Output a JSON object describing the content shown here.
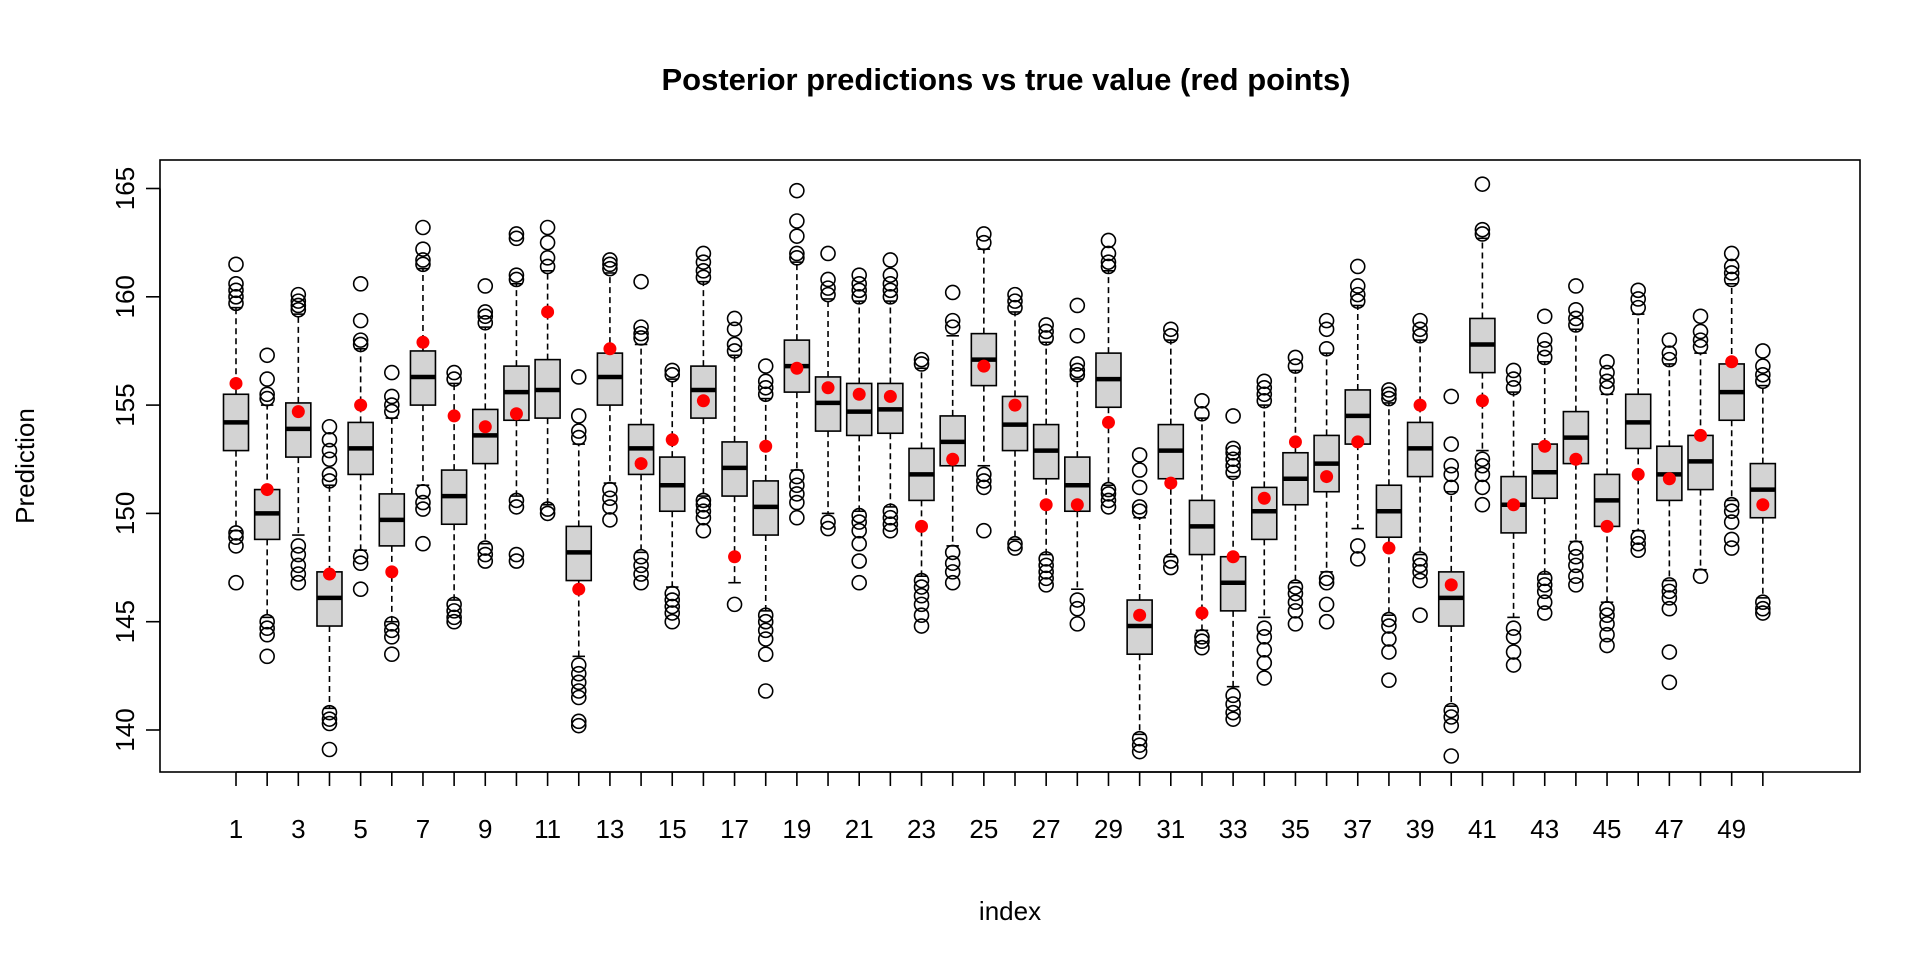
{
  "chart_data": {
    "type": "boxplot",
    "title": "Posterior predictions vs true value (red points)",
    "xlabel": "index",
    "ylabel": "Prediction",
    "ylim": [
      138,
      166
    ],
    "y_ticks": [
      140,
      145,
      150,
      155,
      160,
      165
    ],
    "x_tick_labels": [
      "1",
      "3",
      "5",
      "7",
      "9",
      "11",
      "13",
      "15",
      "17",
      "19",
      "21",
      "23",
      "25",
      "27",
      "29",
      "31",
      "33",
      "35",
      "37",
      "39",
      "41",
      "43",
      "45",
      "47",
      "49"
    ],
    "colors": {
      "box_fill": "#d3d3d3",
      "truth_point": "#ff0000",
      "frame": "#000000"
    },
    "grid": false,
    "categories": [
      1,
      2,
      3,
      4,
      5,
      6,
      7,
      8,
      9,
      10,
      11,
      12,
      13,
      14,
      15,
      16,
      17,
      18,
      19,
      20,
      21,
      22,
      23,
      24,
      25,
      26,
      27,
      28,
      29,
      30,
      31,
      32,
      33,
      34,
      35,
      36,
      37,
      38,
      39,
      40,
      41,
      42,
      43,
      44,
      45,
      46,
      47,
      48,
      49,
      50
    ],
    "boxes": [
      {
        "q1": 152.9,
        "median": 154.2,
        "q3": 155.5,
        "whisker_low": 149.2,
        "whisker_high": 159.5,
        "outliers": [
          146.8,
          148.5,
          148.9,
          149.1,
          159.7,
          160.0,
          160.3,
          160.6,
          161.5
        ]
      },
      {
        "q1": 148.8,
        "median": 150.0,
        "q3": 151.1,
        "whisker_low": 145.2,
        "whisker_high": 155.0,
        "outliers": [
          143.4,
          144.4,
          144.7,
          145.0,
          155.3,
          155.5,
          156.2,
          157.3
        ]
      },
      {
        "q1": 152.6,
        "median": 153.9,
        "q3": 155.1,
        "whisker_low": 149.0,
        "whisker_high": 159.2,
        "outliers": [
          146.8,
          147.2,
          147.6,
          148.1,
          148.5,
          159.4,
          159.6,
          159.8,
          160.1
        ]
      },
      {
        "q1": 144.8,
        "median": 146.1,
        "q3": 147.3,
        "whisker_low": 141.0,
        "whisker_high": 151.3,
        "outliers": [
          139.1,
          140.3,
          140.5,
          140.8,
          151.5,
          151.8,
          152.5,
          152.9,
          153.4,
          154.0
        ]
      },
      {
        "q1": 151.8,
        "median": 153.0,
        "q3": 154.2,
        "whisker_low": 148.3,
        "whisker_high": 157.6,
        "outliers": [
          146.5,
          147.7,
          148.0,
          157.8,
          158.0,
          158.9,
          160.6
        ]
      },
      {
        "q1": 148.5,
        "median": 149.7,
        "q3": 150.9,
        "whisker_low": 145.0,
        "whisker_high": 154.4,
        "outliers": [
          143.5,
          144.3,
          144.6,
          144.9,
          154.7,
          155.0,
          155.4,
          156.5
        ]
      },
      {
        "q1": 155.0,
        "median": 156.3,
        "q3": 157.5,
        "whisker_low": 151.3,
        "whisker_high": 161.3,
        "outliers": [
          148.6,
          150.2,
          150.5,
          151.0,
          161.5,
          161.7,
          162.2,
          163.2
        ]
      },
      {
        "q1": 149.5,
        "median": 150.8,
        "q3": 152.0,
        "whisker_low": 146.0,
        "whisker_high": 156.0,
        "outliers": [
          145.0,
          145.2,
          145.5,
          145.8,
          156.2,
          156.5
        ]
      },
      {
        "q1": 152.3,
        "median": 153.6,
        "q3": 154.8,
        "whisker_low": 148.6,
        "whisker_high": 158.6,
        "outliers": [
          147.8,
          148.1,
          148.4,
          158.8,
          159.1,
          159.3,
          160.5
        ]
      },
      {
        "q1": 154.3,
        "median": 155.6,
        "q3": 156.8,
        "whisker_low": 150.8,
        "whisker_high": 160.6,
        "outliers": [
          147.8,
          148.1,
          150.3,
          150.6,
          160.8,
          161.0,
          162.7,
          162.9
        ]
      },
      {
        "q1": 154.4,
        "median": 155.7,
        "q3": 157.1,
        "whisker_low": 150.4,
        "whisker_high": 161.2,
        "outliers": [
          150.0,
          150.2,
          161.4,
          161.8,
          162.5,
          163.2
        ]
      },
      {
        "q1": 146.9,
        "median": 148.2,
        "q3": 149.4,
        "whisker_low": 143.4,
        "whisker_high": 153.2,
        "outliers": [
          140.2,
          140.4,
          141.5,
          141.8,
          142.2,
          142.6,
          143.0,
          153.5,
          153.8,
          154.5,
          156.3
        ]
      },
      {
        "q1": 155.0,
        "median": 156.3,
        "q3": 157.4,
        "whisker_low": 151.4,
        "whisker_high": 161.1,
        "outliers": [
          149.7,
          150.3,
          150.7,
          151.1,
          161.3,
          161.5,
          161.7
        ]
      },
      {
        "q1": 151.8,
        "median": 153.0,
        "q3": 154.1,
        "whisker_low": 148.2,
        "whisker_high": 157.8,
        "outliers": [
          146.8,
          147.2,
          147.6,
          148.0,
          158.1,
          158.3,
          158.6,
          160.7
        ]
      },
      {
        "q1": 150.1,
        "median": 151.3,
        "q3": 152.6,
        "whisker_low": 146.6,
        "whisker_high": 156.2,
        "outliers": [
          145.0,
          145.4,
          145.7,
          146.0,
          146.3,
          156.4,
          156.6
        ]
      },
      {
        "q1": 154.4,
        "median": 155.7,
        "q3": 156.8,
        "whisker_low": 150.8,
        "whisker_high": 160.7,
        "outliers": [
          149.2,
          149.8,
          150.1,
          150.4,
          150.6,
          160.9,
          161.2,
          161.6,
          162.0
        ]
      },
      {
        "q1": 150.8,
        "median": 152.1,
        "q3": 153.3,
        "whisker_low": 146.8,
        "whisker_high": 157.3,
        "outliers": [
          145.8,
          157.5,
          157.8,
          158.5,
          159.0
        ]
      },
      {
        "q1": 149.0,
        "median": 150.3,
        "q3": 151.5,
        "whisker_low": 145.5,
        "whisker_high": 155.3,
        "outliers": [
          141.8,
          143.5,
          144.2,
          144.6,
          145.0,
          145.3,
          155.5,
          155.8,
          156.1,
          156.8
        ]
      },
      {
        "q1": 155.6,
        "median": 156.8,
        "q3": 158.0,
        "whisker_low": 152.0,
        "whisker_high": 161.6,
        "outliers": [
          149.8,
          150.5,
          150.9,
          151.3,
          151.7,
          161.8,
          162.0,
          162.8,
          163.5,
          164.9
        ]
      },
      {
        "q1": 153.8,
        "median": 155.1,
        "q3": 156.3,
        "whisker_low": 150.0,
        "whisker_high": 159.9,
        "outliers": [
          149.3,
          149.6,
          160.1,
          160.4,
          160.8,
          162.0
        ]
      },
      {
        "q1": 153.6,
        "median": 154.7,
        "q3": 156.0,
        "whisker_low": 150.1,
        "whisker_high": 159.8,
        "outliers": [
          146.8,
          147.8,
          148.6,
          149.2,
          149.6,
          149.9,
          160.0,
          160.3,
          160.6,
          161.0
        ]
      },
      {
        "q1": 153.7,
        "median": 154.8,
        "q3": 156.0,
        "whisker_low": 150.3,
        "whisker_high": 159.8,
        "outliers": [
          149.2,
          149.5,
          149.8,
          150.1,
          160.0,
          160.3,
          160.6,
          161.0,
          161.7
        ]
      },
      {
        "q1": 150.6,
        "median": 151.8,
        "q3": 153.0,
        "whisker_low": 147.1,
        "whisker_high": 156.7,
        "outliers": [
          144.8,
          145.3,
          145.8,
          146.2,
          146.6,
          146.9,
          156.9,
          157.1
        ]
      },
      {
        "q1": 152.2,
        "median": 153.3,
        "q3": 154.5,
        "whisker_low": 148.5,
        "whisker_high": 158.2,
        "outliers": [
          146.8,
          147.3,
          147.7,
          148.2,
          158.6,
          158.9,
          160.2
        ]
      },
      {
        "q1": 155.9,
        "median": 157.1,
        "q3": 158.3,
        "whisker_low": 152.2,
        "whisker_high": 162.2,
        "outliers": [
          149.2,
          151.2,
          151.5,
          151.8,
          162.5,
          162.9
        ]
      },
      {
        "q1": 152.9,
        "median": 154.1,
        "q3": 155.4,
        "whisker_low": 148.8,
        "whisker_high": 159.3,
        "outliers": [
          148.4,
          148.6,
          159.5,
          159.8,
          160.1
        ]
      },
      {
        "q1": 151.6,
        "median": 152.9,
        "q3": 154.1,
        "whisker_low": 148.1,
        "whisker_high": 157.9,
        "outliers": [
          146.7,
          147.0,
          147.3,
          147.6,
          147.9,
          158.1,
          158.4,
          158.7
        ]
      },
      {
        "q1": 150.1,
        "median": 151.3,
        "q3": 152.6,
        "whisker_low": 146.5,
        "whisker_high": 156.2,
        "outliers": [
          144.9,
          145.6,
          146.0,
          156.4,
          156.6,
          156.9,
          158.2,
          159.6
        ]
      },
      {
        "q1": 154.9,
        "median": 156.2,
        "q3": 157.4,
        "whisker_low": 151.3,
        "whisker_high": 161.2,
        "outliers": [
          150.3,
          150.6,
          150.9,
          151.1,
          161.4,
          161.6,
          162.0,
          162.6
        ]
      },
      {
        "q1": 143.5,
        "median": 144.8,
        "q3": 146.0,
        "whisker_low": 139.8,
        "whisker_high": 149.8,
        "outliers": [
          139.0,
          139.3,
          139.6,
          150.1,
          150.3,
          151.2,
          152.0,
          152.7
        ]
      },
      {
        "q1": 151.6,
        "median": 152.9,
        "q3": 154.1,
        "whisker_low": 148.0,
        "whisker_high": 158.0,
        "outliers": [
          147.5,
          147.8,
          158.2,
          158.5
        ]
      },
      {
        "q1": 148.1,
        "median": 149.4,
        "q3": 150.6,
        "whisker_low": 144.6,
        "whisker_high": 154.4,
        "outliers": [
          143.8,
          144.1,
          144.3,
          154.6,
          155.2
        ]
      },
      {
        "q1": 145.5,
        "median": 146.8,
        "q3": 148.0,
        "whisker_low": 142.0,
        "whisker_high": 151.7,
        "outliers": [
          140.5,
          140.8,
          141.2,
          141.6,
          151.9,
          152.2,
          152.5,
          152.8,
          153.0,
          154.5
        ]
      },
      {
        "q1": 148.8,
        "median": 150.1,
        "q3": 151.2,
        "whisker_low": 145.2,
        "whisker_high": 155.0,
        "outliers": [
          142.4,
          143.1,
          143.7,
          144.3,
          144.7,
          155.2,
          155.5,
          155.8,
          156.1
        ]
      },
      {
        "q1": 150.4,
        "median": 151.6,
        "q3": 152.8,
        "whisker_low": 146.8,
        "whisker_high": 156.6,
        "outliers": [
          144.9,
          145.5,
          145.9,
          146.3,
          146.6,
          156.8,
          157.2
        ]
      },
      {
        "q1": 151.0,
        "median": 152.3,
        "q3": 153.6,
        "whisker_low": 147.3,
        "whisker_high": 157.4,
        "outliers": [
          145.0,
          145.8,
          146.8,
          147.0,
          157.6,
          158.5,
          158.9
        ]
      },
      {
        "q1": 153.2,
        "median": 154.5,
        "q3": 155.7,
        "whisker_low": 149.3,
        "whisker_high": 159.6,
        "outliers": [
          147.9,
          148.5,
          159.8,
          160.1,
          160.5,
          161.4
        ]
      },
      {
        "q1": 148.9,
        "median": 150.1,
        "q3": 151.3,
        "whisker_low": 145.3,
        "whisker_high": 155.1,
        "outliers": [
          142.3,
          143.6,
          144.2,
          144.8,
          145.1,
          155.3,
          155.5,
          155.7
        ]
      },
      {
        "q1": 151.7,
        "median": 153.0,
        "q3": 154.2,
        "whisker_low": 148.1,
        "whisker_high": 158.0,
        "outliers": [
          145.3,
          146.9,
          147.3,
          147.6,
          147.9,
          158.2,
          158.5,
          158.9
        ]
      },
      {
        "q1": 144.8,
        "median": 146.1,
        "q3": 147.3,
        "whisker_low": 141.1,
        "whisker_high": 151.0,
        "outliers": [
          138.8,
          140.2,
          140.6,
          140.9,
          151.2,
          151.8,
          152.2,
          153.2,
          155.4
        ]
      },
      {
        "q1": 156.5,
        "median": 157.8,
        "q3": 159.0,
        "whisker_low": 152.9,
        "whisker_high": 162.7,
        "outliers": [
          150.4,
          151.2,
          151.8,
          152.2,
          152.5,
          162.9,
          163.1,
          165.2
        ]
      },
      {
        "q1": 149.1,
        "median": 150.4,
        "q3": 151.7,
        "whisker_low": 145.2,
        "whisker_high": 155.6,
        "outliers": [
          143.0,
          143.6,
          144.3,
          144.7,
          155.8,
          156.2,
          156.6
        ]
      },
      {
        "q1": 150.7,
        "median": 151.9,
        "q3": 153.2,
        "whisker_low": 147.2,
        "whisker_high": 157.0,
        "outliers": [
          145.4,
          145.9,
          146.4,
          146.7,
          147.0,
          157.2,
          157.6,
          158.0,
          159.1
        ]
      },
      {
        "q1": 152.3,
        "median": 153.5,
        "q3": 154.7,
        "whisker_low": 148.7,
        "whisker_high": 158.5,
        "outliers": [
          146.7,
          147.1,
          147.6,
          148.0,
          148.4,
          158.7,
          159.0,
          159.4,
          160.5
        ]
      },
      {
        "q1": 149.4,
        "median": 150.6,
        "q3": 151.8,
        "whisker_low": 145.9,
        "whisker_high": 155.5,
        "outliers": [
          143.9,
          144.4,
          144.9,
          145.3,
          145.6,
          155.8,
          156.1,
          156.5,
          157.0
        ]
      },
      {
        "q1": 153.0,
        "median": 154.2,
        "q3": 155.5,
        "whisker_low": 149.2,
        "whisker_high": 159.2,
        "outliers": [
          148.3,
          148.6,
          148.9,
          159.5,
          159.9,
          160.3
        ]
      },
      {
        "q1": 150.6,
        "median": 151.8,
        "q3": 153.1,
        "whisker_low": 146.9,
        "whisker_high": 156.9,
        "outliers": [
          142.2,
          143.6,
          145.6,
          146.1,
          146.4,
          146.7,
          157.1,
          157.4,
          158.0
        ]
      },
      {
        "q1": 151.1,
        "median": 152.4,
        "q3": 153.6,
        "whisker_low": 147.4,
        "whisker_high": 157.4,
        "outliers": [
          147.1,
          157.7,
          158.0,
          158.4,
          159.1
        ]
      },
      {
        "q1": 154.3,
        "median": 155.6,
        "q3": 156.9,
        "whisker_low": 150.6,
        "whisker_high": 160.6,
        "outliers": [
          148.4,
          148.8,
          149.6,
          150.1,
          150.4,
          160.8,
          161.1,
          161.4,
          162.0
        ]
      },
      {
        "q1": 149.8,
        "median": 151.1,
        "q3": 152.3,
        "whisker_low": 146.1,
        "whisker_high": 155.9,
        "outliers": [
          145.4,
          145.6,
          145.9,
          156.1,
          156.4,
          156.8,
          157.5
        ]
      }
    ],
    "true_values": [
      156.0,
      151.1,
      154.7,
      147.2,
      155.0,
      147.3,
      157.9,
      154.5,
      154.0,
      154.6,
      159.3,
      146.5,
      157.6,
      152.3,
      153.4,
      155.2,
      148.0,
      153.1,
      156.7,
      155.8,
      155.5,
      155.4,
      149.4,
      152.5,
      156.8,
      155.0,
      150.4,
      150.4,
      154.2,
      145.3,
      151.4,
      145.4,
      148.0,
      150.7,
      153.3,
      151.7,
      153.3,
      148.4,
      155.0,
      146.7,
      155.2,
      150.4,
      153.1,
      152.5,
      149.4,
      151.8,
      151.6,
      153.6,
      157.0,
      150.4
    ]
  }
}
